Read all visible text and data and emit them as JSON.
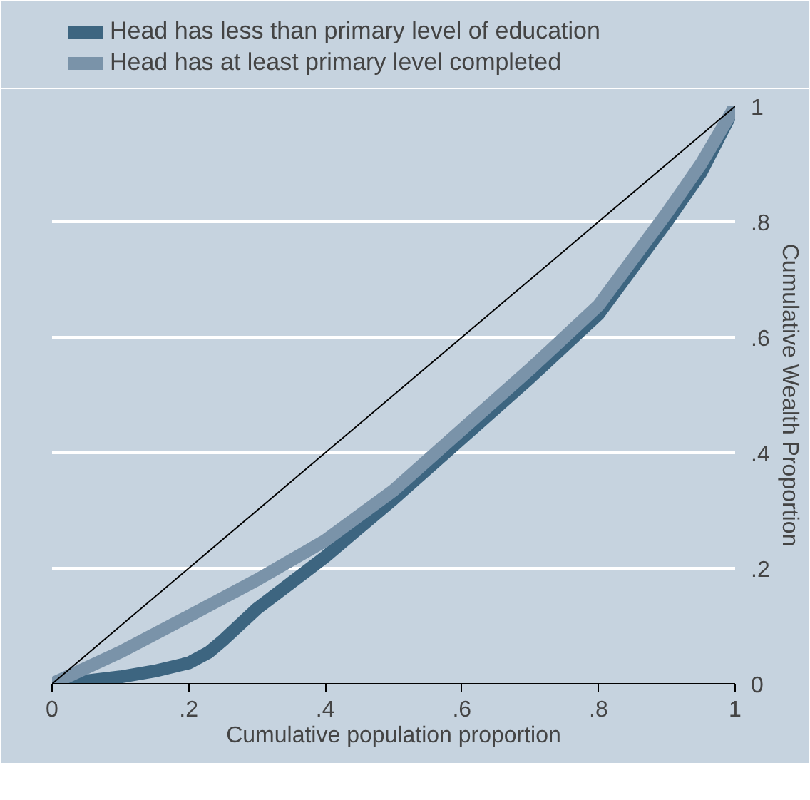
{
  "chart_data": {
    "type": "line",
    "xlabel": "Cumulative population proportion",
    "ylabel": "Cumulative Wealth Proportion",
    "xlim": [
      0,
      1
    ],
    "ylim": [
      0,
      1
    ],
    "xticks": [
      {
        "value": 0,
        "label": "0"
      },
      {
        "value": 0.2,
        "label": ".2"
      },
      {
        "value": 0.4,
        "label": ".4"
      },
      {
        "value": 0.6,
        "label": ".6"
      },
      {
        "value": 0.8,
        "label": ".8"
      },
      {
        "value": 1,
        "label": "1"
      }
    ],
    "yticks": [
      {
        "value": 0,
        "label": "0"
      },
      {
        "value": 0.2,
        "label": ".2"
      },
      {
        "value": 0.4,
        "label": ".4"
      },
      {
        "value": 0.6,
        "label": ".6"
      },
      {
        "value": 0.8,
        "label": ".8"
      },
      {
        "value": 1,
        "label": "1"
      }
    ],
    "grid": "y",
    "legend": "top",
    "line_style": "solid",
    "marker": "none",
    "series": [
      {
        "name": "Head has less than primary level of education",
        "color": "#3d6580",
        "x": [
          0,
          0.05,
          0.1,
          0.15,
          0.2,
          0.23,
          0.25,
          0.3,
          0.35,
          0.4,
          0.5,
          0.6,
          0.7,
          0.8,
          0.9,
          0.95,
          1
        ],
        "values": [
          0,
          0.005,
          0.012,
          0.022,
          0.036,
          0.055,
          0.075,
          0.13,
          0.175,
          0.22,
          0.32,
          0.425,
          0.53,
          0.64,
          0.8,
          0.885,
          1
        ]
      },
      {
        "name": "Head has at least primary level completed",
        "color": "#7a93a9",
        "x": [
          0,
          0.1,
          0.2,
          0.3,
          0.4,
          0.5,
          0.6,
          0.7,
          0.8,
          0.9,
          0.95,
          1
        ],
        "values": [
          0,
          0.055,
          0.117,
          0.18,
          0.248,
          0.335,
          0.44,
          0.545,
          0.655,
          0.815,
          0.9,
          1
        ]
      },
      {
        "color": "#000000",
        "x": [
          0,
          1
        ],
        "values": [
          0,
          1
        ]
      }
    ]
  }
}
